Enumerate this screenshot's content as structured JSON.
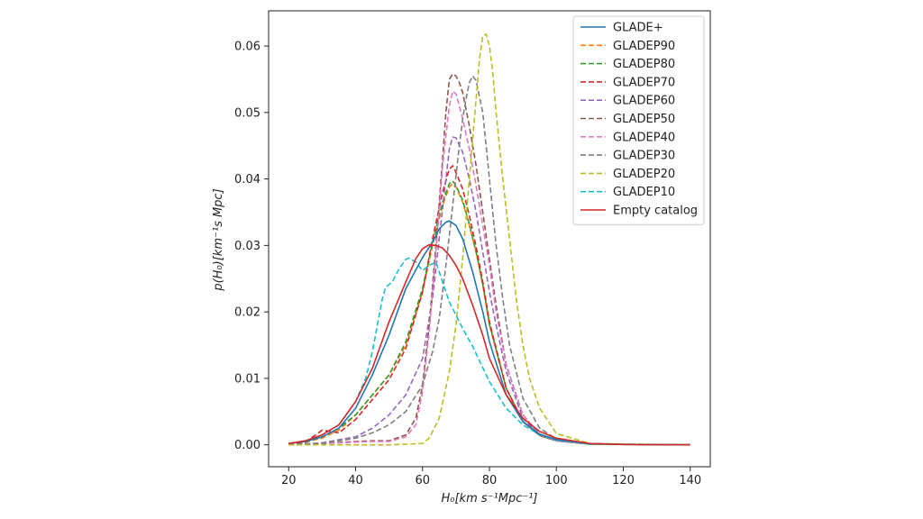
{
  "chart_data": {
    "type": "line",
    "xlabel": "H₀[km s⁻¹Mpc⁻¹]",
    "ylabel": "p(H₀)[km⁻¹s Mpc]",
    "xlim": [
      14,
      146
    ],
    "ylim": [
      -0.0033,
      0.0653
    ],
    "x_ticks": [
      "20",
      "40",
      "60",
      "80",
      "100",
      "120",
      "140"
    ],
    "y_ticks": [
      "0.00",
      "0.01",
      "0.02",
      "0.03",
      "0.04",
      "0.05",
      "0.06"
    ],
    "grid": false,
    "legend_position": "top-right",
    "series": [
      {
        "name": "GLADE+",
        "color": "#1f77b4",
        "style": "solid",
        "x": [
          20,
          25,
          30,
          35,
          40,
          45,
          50,
          55,
          60,
          63,
          65,
          67,
          68,
          70,
          72,
          75,
          78,
          80,
          85,
          90,
          95,
          100,
          110,
          120,
          140
        ],
        "y": [
          0.0002,
          0.0005,
          0.0012,
          0.0025,
          0.0055,
          0.0105,
          0.0165,
          0.0235,
          0.0282,
          0.0305,
          0.0325,
          0.0335,
          0.0337,
          0.033,
          0.031,
          0.026,
          0.02,
          0.0155,
          0.0075,
          0.0035,
          0.0016,
          0.0008,
          0.0002,
          5e-05,
          0.0
        ]
      },
      {
        "name": "GLADEP90",
        "color": "#ff7f0e",
        "style": "dashed",
        "x": [
          20,
          25,
          30,
          35,
          40,
          45,
          50,
          55,
          60,
          63,
          66,
          68,
          69,
          70,
          72,
          74,
          76,
          78,
          80,
          85,
          90,
          95,
          100,
          110,
          140
        ],
        "y": [
          0.0001,
          0.0004,
          0.001,
          0.0022,
          0.0045,
          0.0075,
          0.0105,
          0.015,
          0.023,
          0.03,
          0.036,
          0.0388,
          0.0393,
          0.0388,
          0.0365,
          0.033,
          0.029,
          0.024,
          0.018,
          0.0085,
          0.0035,
          0.0014,
          0.0006,
          0.0001,
          0.0
        ]
      },
      {
        "name": "GLADEP80",
        "color": "#2ca02c",
        "style": "dashed",
        "x": [
          20,
          25,
          30,
          35,
          40,
          45,
          50,
          55,
          60,
          63,
          66,
          68,
          69,
          70,
          72,
          74,
          76,
          78,
          80,
          85,
          90,
          95,
          100,
          110,
          140
        ],
        "y": [
          0.0001,
          0.0004,
          0.0012,
          0.0025,
          0.0045,
          0.0075,
          0.0105,
          0.0155,
          0.0235,
          0.0305,
          0.0365,
          0.0393,
          0.0397,
          0.039,
          0.0368,
          0.0332,
          0.029,
          0.0242,
          0.0182,
          0.0085,
          0.0035,
          0.0014,
          0.0006,
          0.0001,
          0.0
        ]
      },
      {
        "name": "GLADEP70",
        "color": "#d62728",
        "style": "dashed",
        "x": [
          20,
          25,
          30,
          35,
          40,
          45,
          50,
          55,
          60,
          63,
          66,
          68,
          69,
          70,
          72,
          74,
          76,
          78,
          80,
          85,
          90,
          95,
          100,
          110,
          140
        ],
        "y": [
          0.0001,
          0.0004,
          0.0022,
          0.0018,
          0.0038,
          0.0068,
          0.0098,
          0.0145,
          0.023,
          0.031,
          0.038,
          0.0415,
          0.042,
          0.041,
          0.0385,
          0.0345,
          0.0298,
          0.0245,
          0.0185,
          0.0085,
          0.0035,
          0.0014,
          0.0006,
          0.0001,
          0.0
        ]
      },
      {
        "name": "GLADEP60",
        "color": "#9467bd",
        "style": "dashed",
        "x": [
          20,
          30,
          40,
          45,
          50,
          55,
          60,
          63,
          65,
          67,
          68,
          69,
          70,
          72,
          74,
          76,
          78,
          80,
          82,
          85,
          90,
          95,
          100,
          110,
          140
        ],
        "y": [
          0.0,
          0.0003,
          0.0012,
          0.0025,
          0.0045,
          0.0075,
          0.013,
          0.022,
          0.031,
          0.04,
          0.0445,
          0.0463,
          0.0462,
          0.044,
          0.04,
          0.035,
          0.029,
          0.023,
          0.018,
          0.011,
          0.004,
          0.0015,
          0.0006,
          0.0001,
          0.0
        ]
      },
      {
        "name": "GLADEP50",
        "color": "#8c564b",
        "style": "dashed",
        "x": [
          20,
          30,
          40,
          45,
          50,
          55,
          58,
          60,
          62,
          64,
          66,
          67,
          68,
          69,
          70,
          71,
          72,
          74,
          76,
          78,
          80,
          82,
          85,
          90,
          95,
          100,
          110,
          140
        ],
        "y": [
          0.0,
          0.0002,
          0.0005,
          0.0006,
          0.0006,
          0.0015,
          0.004,
          0.009,
          0.018,
          0.03,
          0.043,
          0.05,
          0.055,
          0.0558,
          0.0555,
          0.0545,
          0.053,
          0.048,
          0.042,
          0.035,
          0.028,
          0.021,
          0.012,
          0.0045,
          0.0016,
          0.0006,
          0.0001,
          0.0
        ]
      },
      {
        "name": "GLADEP40",
        "color": "#e377c2",
        "style": "dashed",
        "x": [
          20,
          30,
          40,
          45,
          50,
          55,
          58,
          60,
          62,
          64,
          66,
          68,
          69,
          70,
          71,
          72,
          74,
          76,
          78,
          80,
          82,
          85,
          90,
          95,
          100,
          110,
          140
        ],
        "y": [
          0.0,
          0.0002,
          0.0004,
          0.0005,
          0.0005,
          0.0012,
          0.003,
          0.008,
          0.017,
          0.029,
          0.042,
          0.051,
          0.0532,
          0.0528,
          0.051,
          0.049,
          0.0445,
          0.039,
          0.033,
          0.027,
          0.02,
          0.012,
          0.0045,
          0.0016,
          0.0006,
          0.0001,
          0.0
        ]
      },
      {
        "name": "GLADEP30",
        "color": "#7f7f7f",
        "style": "dashed",
        "x": [
          20,
          30,
          40,
          45,
          50,
          55,
          60,
          63,
          65,
          67,
          69,
          71,
          72,
          73,
          74,
          75,
          76,
          78,
          80,
          82,
          84,
          86,
          90,
          95,
          100,
          110,
          140
        ],
        "y": [
          0.0,
          0.0002,
          0.001,
          0.0018,
          0.003,
          0.005,
          0.009,
          0.014,
          0.019,
          0.027,
          0.036,
          0.045,
          0.049,
          0.052,
          0.0545,
          0.0555,
          0.0548,
          0.05,
          0.04,
          0.03,
          0.022,
          0.015,
          0.007,
          0.0025,
          0.0009,
          0.0001,
          0.0
        ]
      },
      {
        "name": "GLADEP20",
        "color": "#bcbd22",
        "style": "dashed",
        "x": [
          20,
          40,
          50,
          60,
          62,
          65,
          68,
          70,
          72,
          74,
          76,
          77,
          78,
          79,
          80,
          81,
          82,
          84,
          86,
          88,
          90,
          92,
          95,
          100,
          110,
          140
        ],
        "y": [
          0.0,
          0.0,
          0.0,
          0.0002,
          0.001,
          0.004,
          0.011,
          0.018,
          0.028,
          0.04,
          0.052,
          0.058,
          0.0615,
          0.0618,
          0.06,
          0.056,
          0.05,
          0.04,
          0.031,
          0.022,
          0.015,
          0.01,
          0.0055,
          0.0017,
          0.0002,
          0.0
        ]
      },
      {
        "name": "GLADEP10",
        "color": "#17becf",
        "style": "dashed",
        "x": [
          20,
          25,
          30,
          35,
          40,
          43,
          45,
          48,
          49,
          51,
          53,
          55,
          56,
          58,
          60,
          62,
          64,
          66,
          68,
          70,
          72,
          75,
          80,
          85,
          90,
          95,
          100,
          110,
          140
        ],
        "y": [
          0.0002,
          0.0006,
          0.0015,
          0.003,
          0.0065,
          0.01,
          0.014,
          0.022,
          0.0237,
          0.0245,
          0.0265,
          0.0279,
          0.0281,
          0.0275,
          0.0262,
          0.027,
          0.0275,
          0.0245,
          0.0215,
          0.0195,
          0.0175,
          0.0148,
          0.0095,
          0.0055,
          0.003,
          0.0015,
          0.0007,
          0.0001,
          0.0
        ]
      },
      {
        "name": "Empty catalog",
        "color": "#d62728",
        "style": "solid",
        "x": [
          20,
          25,
          30,
          35,
          40,
          45,
          50,
          55,
          58,
          60,
          62,
          64,
          66,
          68,
          70,
          72,
          75,
          78,
          80,
          85,
          90,
          95,
          100,
          110,
          120,
          140
        ],
        "y": [
          0.0002,
          0.0006,
          0.0015,
          0.003,
          0.0065,
          0.0115,
          0.0185,
          0.0245,
          0.028,
          0.0295,
          0.0301,
          0.03,
          0.0296,
          0.0285,
          0.027,
          0.025,
          0.021,
          0.0165,
          0.013,
          0.0075,
          0.004,
          0.002,
          0.001,
          0.0002,
          5e-05,
          0.0
        ]
      }
    ]
  }
}
